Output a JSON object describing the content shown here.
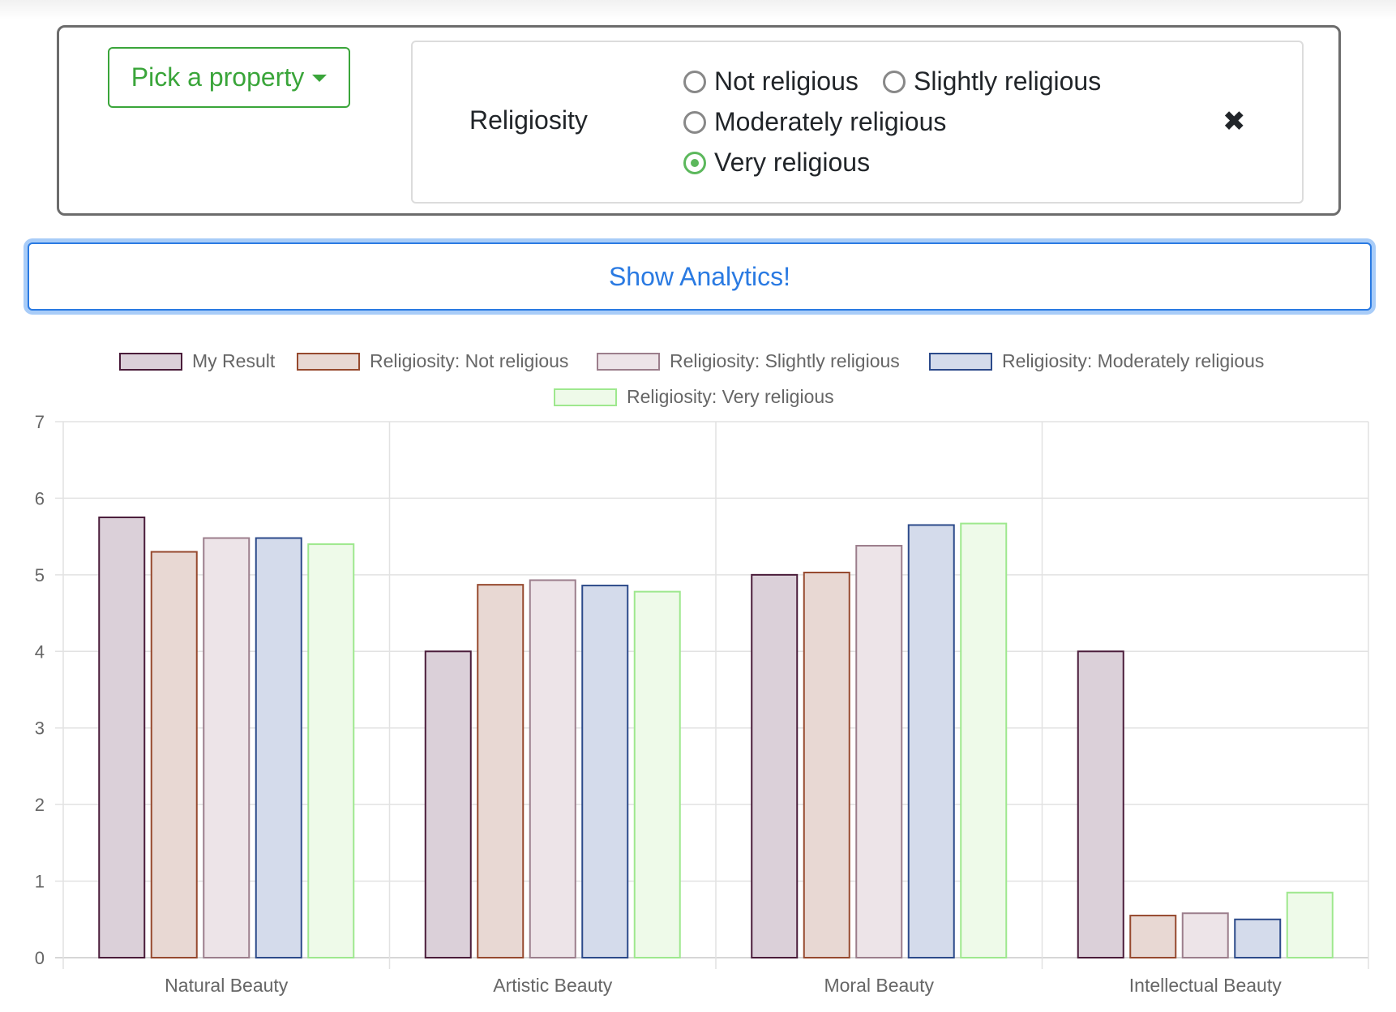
{
  "filter": {
    "pick_label": "Pick a property",
    "property_label": "Religiosity",
    "options": [
      {
        "label": "Not religious",
        "checked": false
      },
      {
        "label": "Slightly religious",
        "checked": false
      },
      {
        "label": "Moderately religious",
        "checked": false
      },
      {
        "label": "Very religious",
        "checked": true
      }
    ],
    "close_symbol": "✖"
  },
  "analytics_button": "Show Analytics!",
  "chart_data": {
    "type": "bar",
    "categories": [
      "Natural Beauty",
      "Artistic Beauty",
      "Moral Beauty",
      "Intellectual Beauty"
    ],
    "ylim": [
      0,
      7
    ],
    "yticks": [
      0,
      1,
      2,
      3,
      4,
      5,
      6,
      7
    ],
    "grid": true,
    "legend_position": "top",
    "series": [
      {
        "name": "My Result",
        "values": [
          5.75,
          4.0,
          5.0,
          4.0
        ],
        "fill": "#dbd0d9",
        "stroke": "#4a1c3a"
      },
      {
        "name": "Religiosity: Not religious",
        "values": [
          5.3,
          4.87,
          5.03,
          0.55
        ],
        "fill": "#e8d8d3",
        "stroke": "#96492e"
      },
      {
        "name": "Religiosity: Slightly religious",
        "values": [
          5.48,
          4.93,
          5.38,
          0.58
        ],
        "fill": "#ede4e8",
        "stroke": "#9c7e8c"
      },
      {
        "name": "Religiosity: Moderately religious",
        "values": [
          5.48,
          4.86,
          5.65,
          0.5
        ],
        "fill": "#d4dbeb",
        "stroke": "#2c4a8a"
      },
      {
        "name": "Religiosity: Very religious",
        "values": [
          5.4,
          4.78,
          5.67,
          0.85
        ],
        "fill": "#eefae9",
        "stroke": "#9ee88e"
      }
    ]
  }
}
